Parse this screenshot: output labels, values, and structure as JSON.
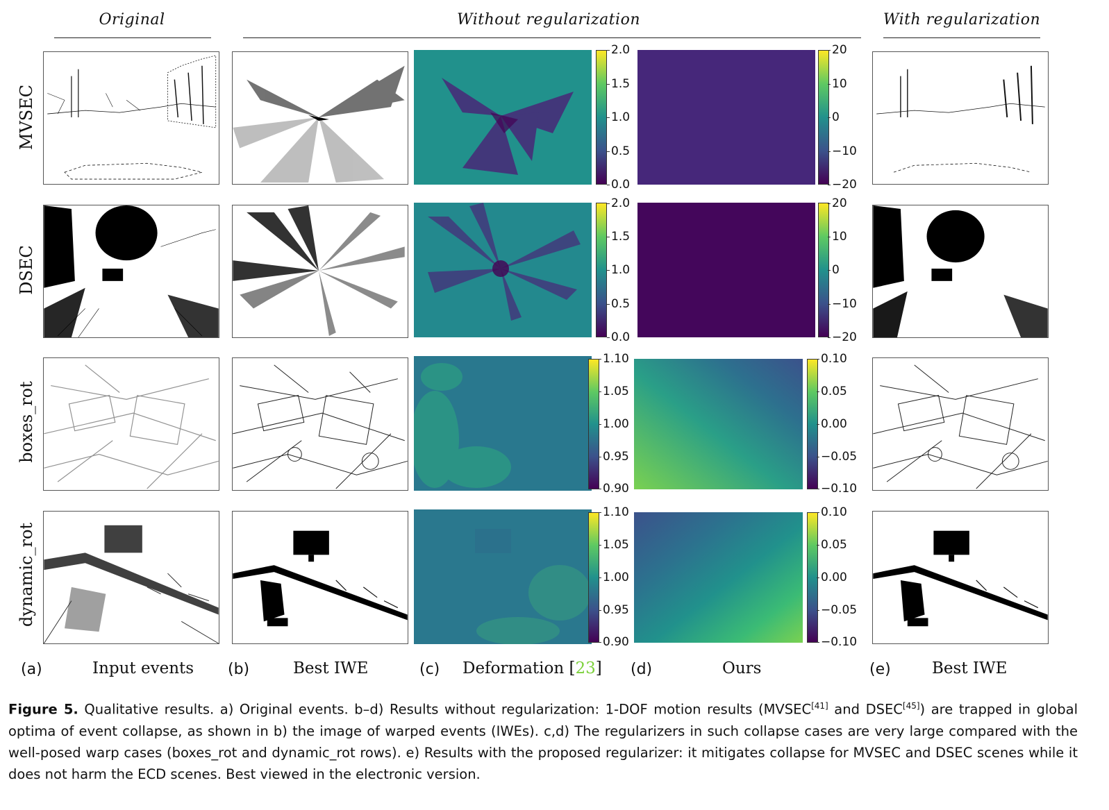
{
  "headers": {
    "original": "Original",
    "without": "Without regularization",
    "with": "With regularization"
  },
  "rows": [
    "MVSEC",
    "DSEC",
    "boxes_rot",
    "dynamic_rot"
  ],
  "colorbars": {
    "deformation_big": [
      "2.0",
      "1.5",
      "1.0",
      "0.5",
      "0.0"
    ],
    "ours_big": [
      "20",
      "10",
      "0",
      "−10",
      "−20"
    ],
    "deformation_small": [
      "1.10",
      "1.05",
      "1.00",
      "0.95",
      "0.90"
    ],
    "ours_small": [
      "0.10",
      "0.05",
      "0.00",
      "−0.05",
      "−0.10"
    ]
  },
  "columns": {
    "a_letter": "(a)",
    "a_label": "Input events",
    "b_letter": "(b)",
    "b_label": "Best IWE",
    "c_letter": "(c)",
    "c_label": "Deformation [",
    "c_cite": "23",
    "c_close": "]",
    "d_letter": "(d)",
    "d_label": "Ours",
    "e_letter": "(e)",
    "e_label": "Best IWE"
  },
  "caption": {
    "title": "Figure 5.",
    "part1": " Qualitative results. a) Original events. b–d) Results without regularization: 1-DOF motion results (MVSEC",
    "sup1": "[41]",
    "part2": " and DSEC",
    "sup2": "[45]",
    "part3": ") are trapped in global optima of event collapse, as shown in b) the image of warped events (IWEs). c,d) The regularizers in such collapse cases are very large compared with the well-posed warp cases (boxes_rot and dynamic_rot rows). e) Results with the proposed regularizer: it mitigates collapse for MVSEC and DSEC scenes while it does not harm the ECD scenes. Best viewed in the electronic version."
  },
  "colors": {
    "viridis_dark": "#440154",
    "viridis_mid": "#21918c",
    "viridis_light": "#fde725",
    "cite": "#7cd13b"
  }
}
